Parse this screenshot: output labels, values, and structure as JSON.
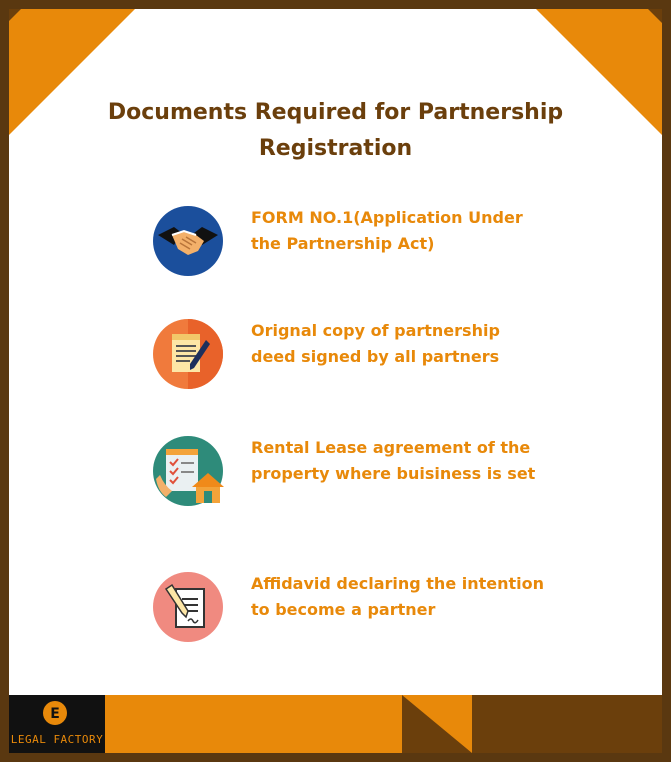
{
  "title": {
    "line1": "Documents Required for Partnership",
    "line2": "Registration"
  },
  "items": [
    {
      "icon": "handshake-icon",
      "line1": "FORM NO.1(Application Under",
      "line2": "the Partnership Act)"
    },
    {
      "icon": "document-pen-icon",
      "line1": "Orignal copy of partnership",
      "line2": "deed signed by all partners"
    },
    {
      "icon": "lease-house-icon",
      "line1": "Rental Lease agreement of the",
      "line2": "property where buisiness is set"
    },
    {
      "icon": "affidavit-pencil-icon",
      "line1": "Affidavid declaring the intention",
      "line2": "to become a partner"
    }
  ],
  "brand": {
    "logo_letter": "E",
    "name": "LEGAL FACTORY"
  },
  "colors": {
    "accent": "#e8890a",
    "dark": "#6b3f0c",
    "title": "#6b3f0c"
  }
}
